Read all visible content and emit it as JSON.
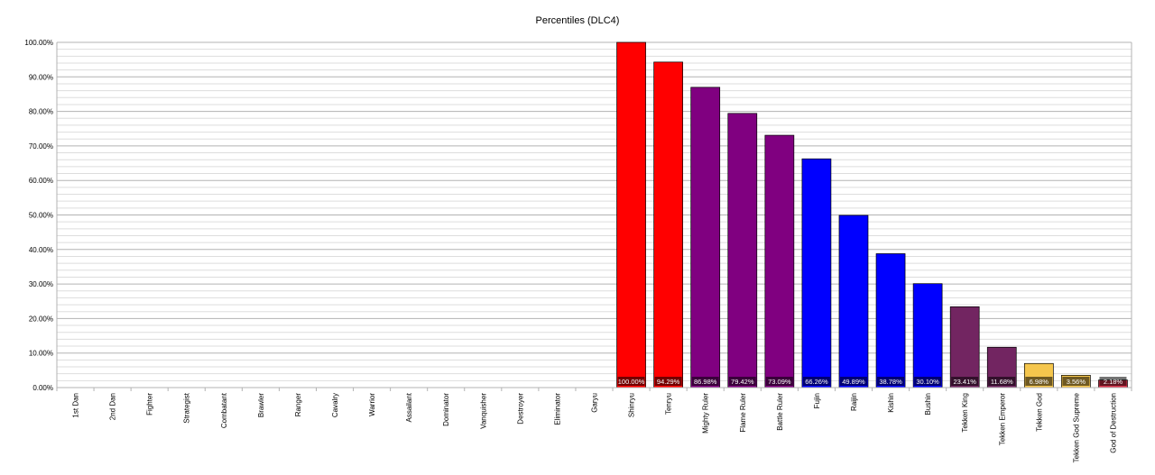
{
  "chart_data": {
    "type": "bar",
    "title": "Percentiles (DLC4)",
    "xlabel": "",
    "ylabel": "",
    "ylim": [
      0,
      100
    ],
    "y_ticks": [
      "0.00%",
      "10.00%",
      "20.00%",
      "30.00%",
      "40.00%",
      "50.00%",
      "60.00%",
      "70.00%",
      "80.00%",
      "90.00%",
      "100.00%"
    ],
    "grid": true,
    "legend": "none",
    "categories": [
      "1st Dan",
      "2nd Dan",
      "Fighter",
      "Strategist",
      "Combatant",
      "Brawler",
      "Ranger",
      "Cavalry",
      "Warrior",
      "Assailant",
      "Dominator",
      "Vanquisher",
      "Destroyer",
      "Eliminator",
      "Garyu",
      "Shinryu",
      "Tenryu",
      "Mighty Ruler",
      "Flame Ruler",
      "Battle Ruler",
      "Fujin",
      "Raijin",
      "Kishin",
      "Bushin",
      "Tekken King",
      "Tekken Emperor",
      "Tekken God",
      "Tekken God Supreme",
      "God of Destruction"
    ],
    "values": [
      null,
      null,
      null,
      null,
      null,
      null,
      null,
      null,
      null,
      null,
      null,
      null,
      null,
      null,
      null,
      100.0,
      94.29,
      86.98,
      79.42,
      73.09,
      66.26,
      49.89,
      38.78,
      30.1,
      23.41,
      11.68,
      6.98,
      3.56,
      2.18
    ],
    "data_labels": [
      "",
      "",
      "",
      "",
      "",
      "",
      "",
      "",
      "",
      "",
      "",
      "",
      "",
      "",
      "",
      "100.00%",
      "94.29%",
      "86.98%",
      "79.42%",
      "73.09%",
      "66.26%",
      "49.89%",
      "38.78%",
      "30.10%",
      "23.41%",
      "11.68%",
      "6.98%",
      "3.56%",
      "2.18%"
    ],
    "colors": [
      "",
      "",
      "",
      "",
      "",
      "",
      "",
      "",
      "",
      "",
      "",
      "",
      "",
      "",
      "",
      "#ff0000",
      "#ff0000",
      "#800080",
      "#800080",
      "#800080",
      "#0000ff",
      "#0000ff",
      "#0000ff",
      "#0000ff",
      "#722561",
      "#722561",
      "#f5c64d",
      "#f5c64d",
      "#d8304a"
    ],
    "label_colors": [
      "",
      "",
      "",
      "",
      "",
      "",
      "",
      "",
      "",
      "",
      "",
      "",
      "",
      "",
      "",
      "#ffffff",
      "#ffffff",
      "#ffffff",
      "#ffffff",
      "#ffffff",
      "#ffffff",
      "#ffffff",
      "#ffffff",
      "#ffffff",
      "#ffffff",
      "#ffffff",
      "#ffffff",
      "#ffffff",
      "#ffffff"
    ],
    "label_bg": "#000000"
  }
}
